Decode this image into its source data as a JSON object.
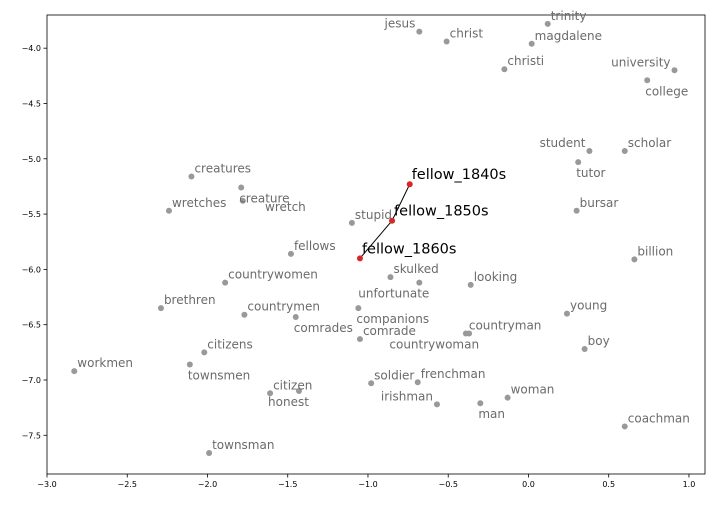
{
  "chart_data": {
    "type": "scatter",
    "title": "",
    "xlabel": "",
    "ylabel": "",
    "xlim": [
      -3.0,
      1.1
    ],
    "ylim": [
      -7.85,
      -3.7
    ],
    "grid": false,
    "x_ticks": [
      -3.0,
      -2.5,
      -2.0,
      -1.5,
      -1.0,
      -0.5,
      0.0,
      0.5,
      1.0
    ],
    "y_ticks": [
      -4.0,
      -4.5,
      -5.0,
      -5.5,
      -6.0,
      -6.5,
      -7.0,
      -7.5
    ],
    "x_tick_labels": [
      "−3.0",
      "−2.5",
      "−2.0",
      "−1.5",
      "−1.0",
      "−0.5",
      "0.0",
      "0.5",
      "1.0"
    ],
    "y_tick_labels": [
      "−4.0",
      "−4.5",
      "−5.0",
      "−5.5",
      "−6.0",
      "−6.5",
      "−7.0",
      "−7.5"
    ],
    "neighbor_color": "#999999",
    "neighbor_label_color": "#6b6b6b",
    "target_color": "#d62728",
    "path_color": "#000000",
    "neighbors": [
      {
        "word": "jesus",
        "x": -0.68,
        "y": -3.85,
        "anchor": "end"
      },
      {
        "word": "christ",
        "x": -0.51,
        "y": -3.94,
        "anchor": "start"
      },
      {
        "word": "trinity",
        "x": 0.12,
        "y": -3.78,
        "anchor": "start"
      },
      {
        "word": "magdalene",
        "x": 0.02,
        "y": -3.96,
        "anchor": "start"
      },
      {
        "word": "christi",
        "x": -0.15,
        "y": -4.19,
        "anchor": "start"
      },
      {
        "word": "university",
        "x": 0.91,
        "y": -4.2,
        "anchor": "end"
      },
      {
        "word": "college",
        "x": 0.74,
        "y": -4.29,
        "anchor": "start",
        "below": true
      },
      {
        "word": "student",
        "x": 0.38,
        "y": -4.93,
        "anchor": "end"
      },
      {
        "word": "scholar",
        "x": 0.6,
        "y": -4.93,
        "anchor": "start"
      },
      {
        "word": "tutor",
        "x": 0.31,
        "y": -5.03,
        "anchor": "start",
        "below": true
      },
      {
        "word": "bursar",
        "x": 0.3,
        "y": -5.47,
        "anchor": "start"
      },
      {
        "word": "billion",
        "x": 0.66,
        "y": -5.91,
        "anchor": "start"
      },
      {
        "word": "creatures",
        "x": -2.1,
        "y": -5.16,
        "anchor": "start"
      },
      {
        "word": "creature",
        "x": -1.79,
        "y": -5.26,
        "anchor": "start",
        "below": true
      },
      {
        "word": "wretches",
        "x": -2.24,
        "y": -5.47,
        "anchor": "start"
      },
      {
        "word": "wretch",
        "x": -1.78,
        "y": -5.38,
        "anchor": "start",
        "dx": 63,
        "dy": 10
      },
      {
        "word": "stupid",
        "x": -1.1,
        "y": -5.58,
        "anchor": "start"
      },
      {
        "word": "fellows",
        "x": -1.48,
        "y": -5.86,
        "anchor": "start"
      },
      {
        "word": "skulked",
        "x": -0.86,
        "y": -6.07,
        "anchor": "start"
      },
      {
        "word": "unfortunate",
        "x": -0.68,
        "y": -6.12,
        "anchor": "end",
        "below": true
      },
      {
        "word": "looking",
        "x": -0.36,
        "y": -6.14,
        "anchor": "start"
      },
      {
        "word": "countrywomen",
        "x": -1.89,
        "y": -6.12,
        "anchor": "start"
      },
      {
        "word": "brethren",
        "x": -2.29,
        "y": -6.35,
        "anchor": "start"
      },
      {
        "word": "countrymen",
        "x": -1.77,
        "y": -6.41,
        "anchor": "start"
      },
      {
        "word": "comrades",
        "x": -1.45,
        "y": -6.43,
        "anchor": "start",
        "below": true
      },
      {
        "word": "companions",
        "x": -1.06,
        "y": -6.35,
        "anchor": "start",
        "below": true
      },
      {
        "word": "comrade",
        "x": -1.05,
        "y": -6.63,
        "anchor": "start"
      },
      {
        "word": "young",
        "x": 0.24,
        "y": -6.4,
        "anchor": "start"
      },
      {
        "word": "countryman",
        "x": -0.39,
        "y": -6.58,
        "anchor": "start"
      },
      {
        "word": "countrywoman",
        "x": -0.37,
        "y": -6.58,
        "anchor": "end",
        "below": true
      },
      {
        "word": "boy",
        "x": 0.35,
        "y": -6.72,
        "anchor": "start"
      },
      {
        "word": "citizens",
        "x": -2.02,
        "y": -6.75,
        "anchor": "start"
      },
      {
        "word": "townsmen",
        "x": -2.11,
        "y": -6.86,
        "anchor": "start",
        "below": true
      },
      {
        "word": "workmen",
        "x": -2.83,
        "y": -6.92,
        "anchor": "start"
      },
      {
        "word": "citizen",
        "x": -1.61,
        "y": -7.12,
        "anchor": "start"
      },
      {
        "word": "honest",
        "x": -1.43,
        "y": -7.1,
        "anchor": "end",
        "below": true
      },
      {
        "word": "soldier",
        "x": -0.98,
        "y": -7.03,
        "anchor": "start"
      },
      {
        "word": "frenchman",
        "x": -0.69,
        "y": -7.02,
        "anchor": "start"
      },
      {
        "word": "irishman",
        "x": -0.57,
        "y": -7.22,
        "anchor": "end"
      },
      {
        "word": "man",
        "x": -0.3,
        "y": -7.21,
        "anchor": "start",
        "below": true
      },
      {
        "word": "woman",
        "x": -0.13,
        "y": -7.16,
        "anchor": "start"
      },
      {
        "word": "coachman",
        "x": 0.6,
        "y": -7.42,
        "anchor": "start"
      },
      {
        "word": "townsman",
        "x": -1.99,
        "y": -7.66,
        "anchor": "start"
      }
    ],
    "targets": [
      {
        "word": "fellow_1840s",
        "x": -0.74,
        "y": -5.23
      },
      {
        "word": "fellow_1850s",
        "x": -0.85,
        "y": -5.56
      },
      {
        "word": "fellow_1860s",
        "x": -1.05,
        "y": -5.9
      }
    ]
  }
}
